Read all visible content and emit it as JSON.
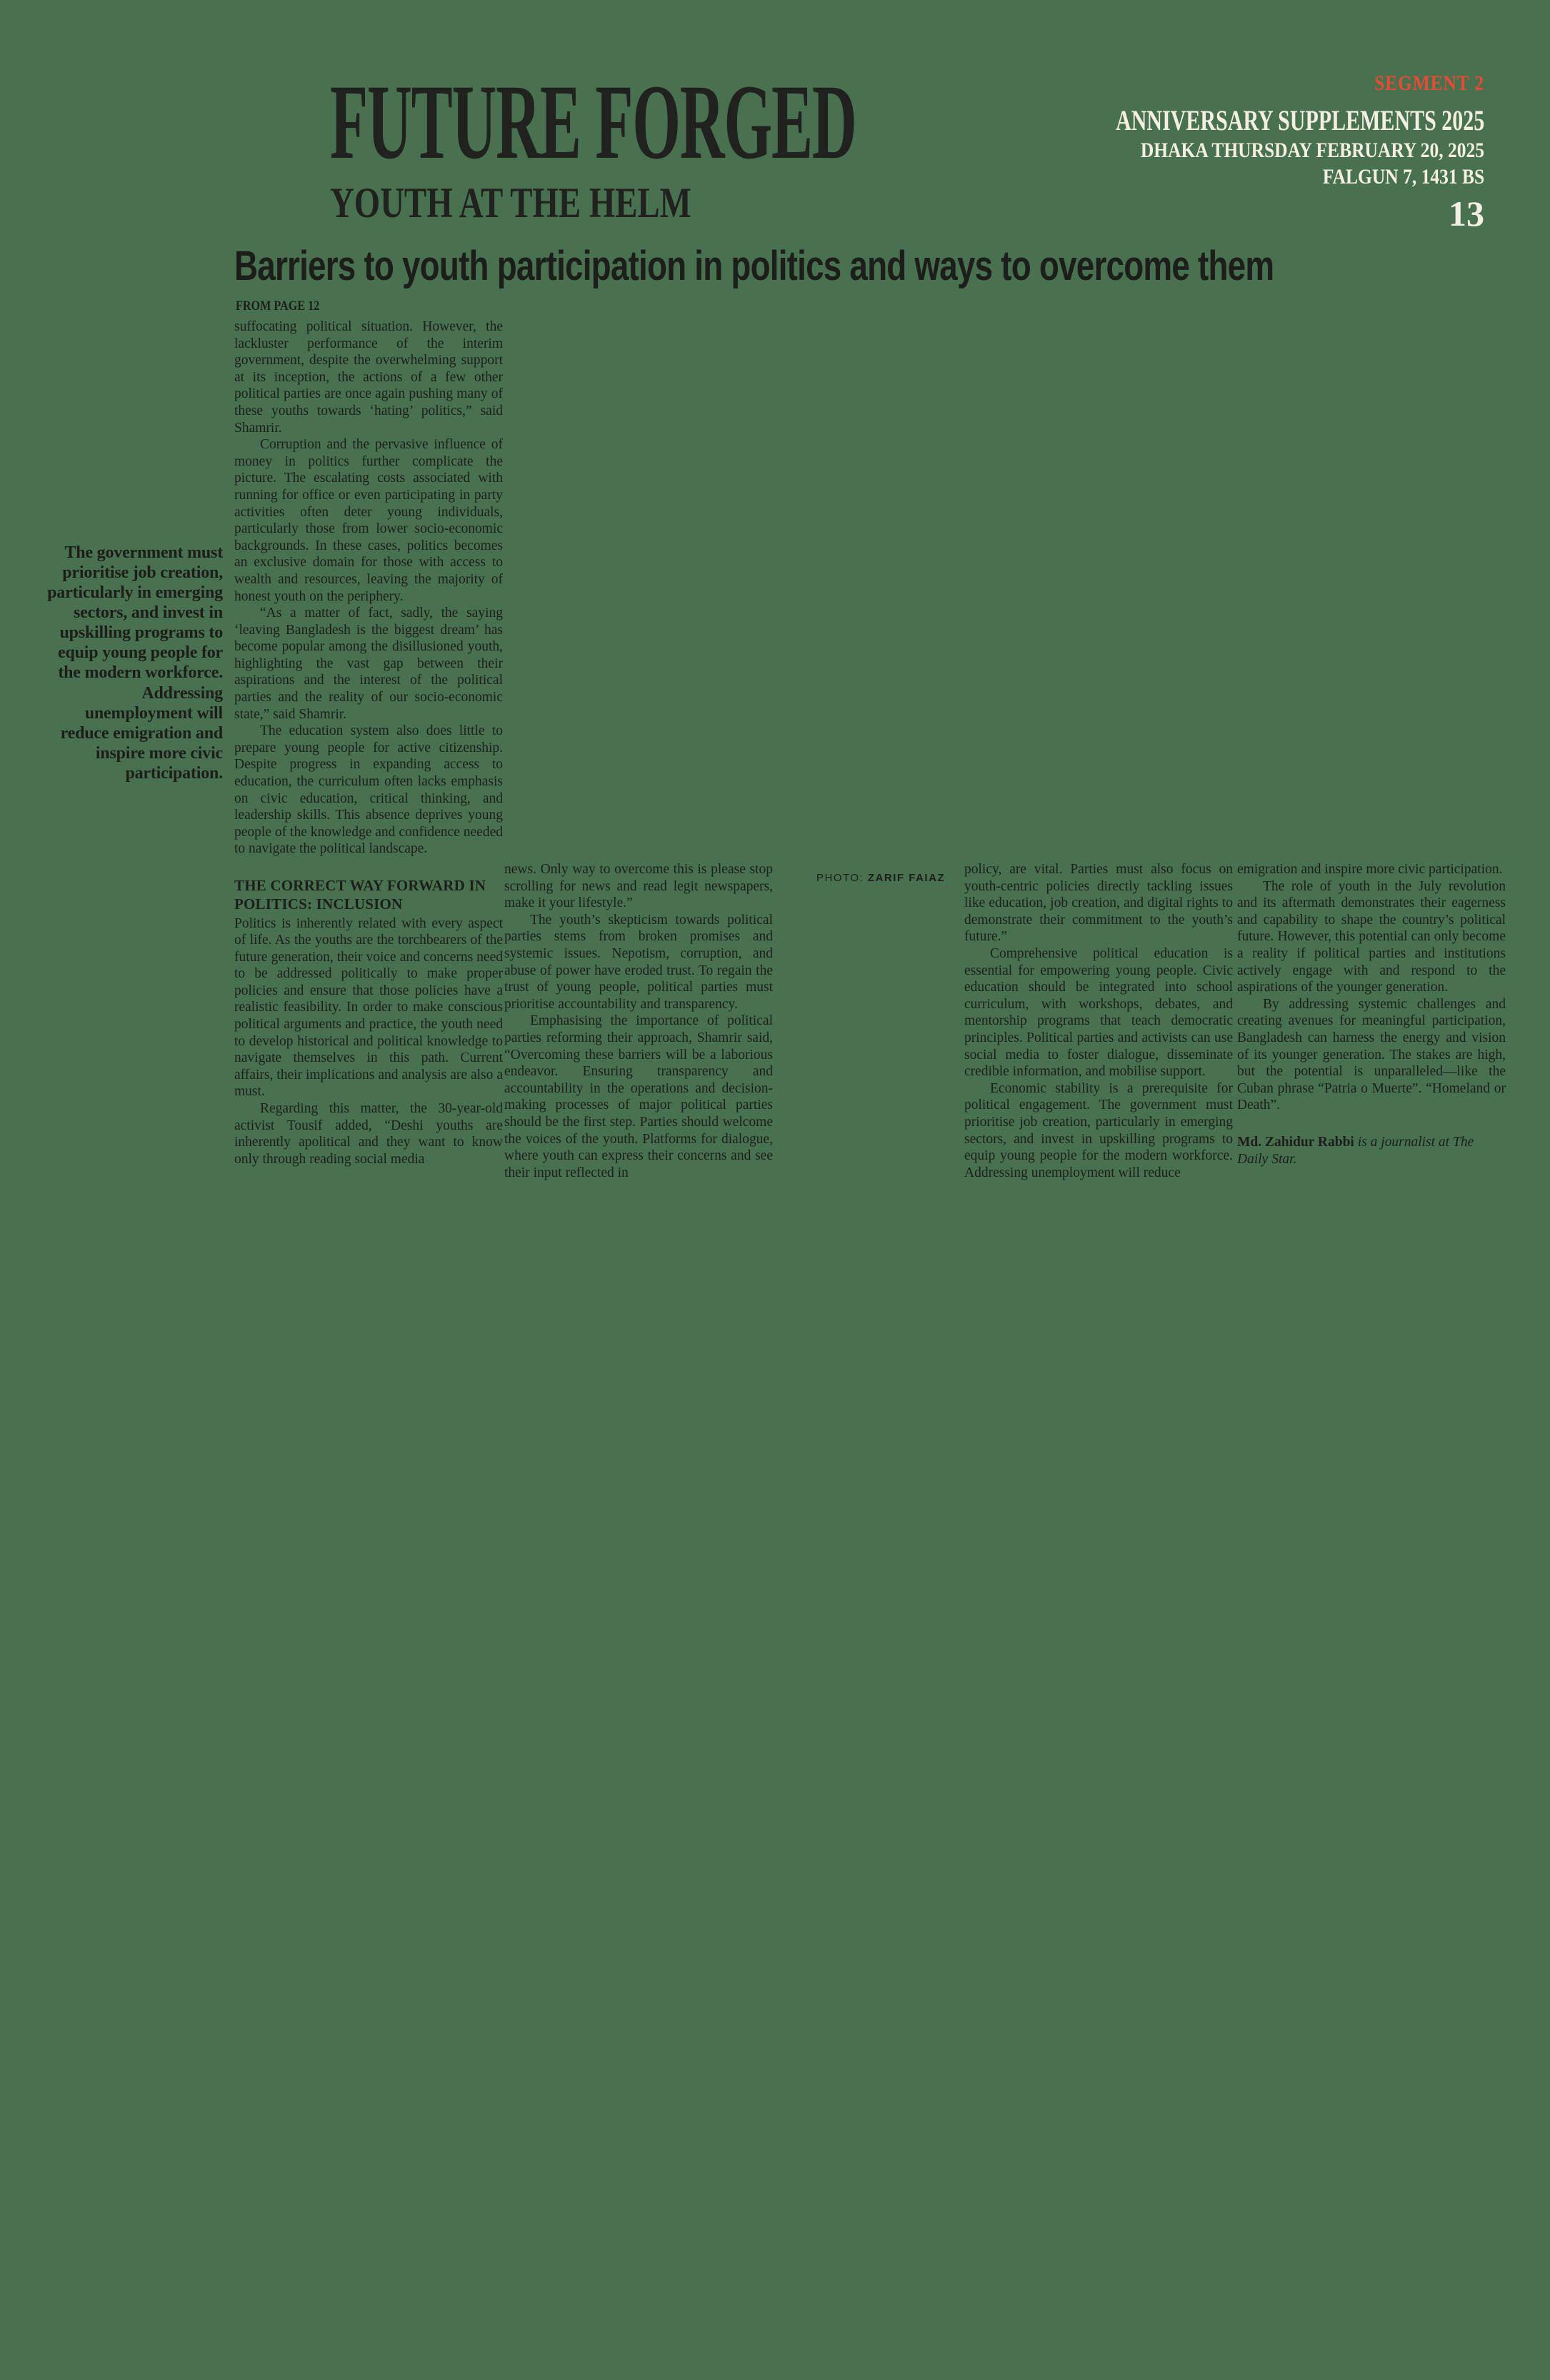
{
  "colors": {
    "background_green": "#48714F",
    "text_ink": "#1e1e1c",
    "accent_red": "#E84A36",
    "header_cream": "#F5EFE3"
  },
  "masthead": {
    "title": "FUTURE FORGED",
    "subtitle": "YOUTH AT THE HELM"
  },
  "header_meta": {
    "segment": "SEGMENT 2",
    "supplement": "ANNIVERSARY SUPPLEMENTS 2025",
    "dateline": "DHAKA THURSDAY FEBRUARY 20, 2025",
    "bangla_date": "FALGUN 7, 1431 BS",
    "page_number": "13"
  },
  "article": {
    "headline": "Barriers to youth participation in politics and ways to overcome them",
    "continuation": "FROM PAGE 12",
    "pull_quote": "The government must prioritise job creation, particularly in emerging sectors, and invest in upskilling programs to equip young people for the modern workforce. Addressing unemployment will reduce emigration and inspire more civic participation.",
    "photo_credit": {
      "label": "PHOTO:",
      "name": "ZARIF FAIAZ"
    },
    "columns": [
      {
        "blocks": [
          {
            "type": "cont",
            "text": "suffocating political situation. However, the lackluster performance of the interim government, despite the overwhelming support at its inception, the actions of a few other political parties are once again pushing many of these youths towards ‘hating’ politics,” said Shamrir."
          },
          {
            "type": "para",
            "text": "Corruption and the pervasive influence of money in politics further complicate the picture. The escalating costs associated with running for office or even participating in party activities often deter young individuals, particularly those from lower socio-economic backgrounds. In these cases, politics becomes an exclusive domain for those with access to wealth and resources, leaving the majority of honest youth on the periphery."
          },
          {
            "type": "para",
            "text": "“As a matter of fact, sadly, the saying ‘leaving Bangladesh is the biggest dream’ has become popular among the disillusioned youth, highlighting the vast gap between their aspirations and the interest of the political parties and the reality of our socio-economic state,” said Shamrir."
          },
          {
            "type": "para",
            "text": "The education system also does little to prepare young people for active citizenship. Despite progress in expanding access to education, the curriculum often lacks emphasis on civic education, critical thinking, and leadership skills. This absence deprives young people of the knowledge and confidence needed to navigate the political landscape."
          },
          {
            "type": "heading",
            "text": "THE CORRECT WAY FORWARD IN POLITICS: INCLUSION"
          },
          {
            "type": "cont",
            "text": "Politics is inherently related with every aspect of life. As the youths are the torchbearers of the future generation, their voice and concerns need to be addressed politically to make proper policies and ensure that those policies have a realistic feasibility. In order to make conscious political arguments and practice, the youth need to develop historical and political knowledge to navigate themselves in this path. Current affairs, their implications and analysis are also a must."
          },
          {
            "type": "para",
            "text": "Regarding this matter, the 30-year-old activist Tousif added, “Deshi youths are inherently apolitical and they want to know only through reading social media"
          }
        ]
      },
      {
        "blocks": [
          {
            "type": "cont",
            "text": "news. Only way to overcome this is please stop scrolling for news and read legit newspapers, make it your lifestyle.”"
          },
          {
            "type": "para",
            "text": "The youth’s skepticism towards political parties stems from broken promises and systemic issues. Nepotism, corruption, and abuse of power have eroded trust. To regain the trust of young people, political parties must prioritise accountability and transparency."
          },
          {
            "type": "para",
            "text": "Emphasising the importance of political parties reforming their approach, Shamrir said, “Overcoming these barriers will be a laborious endeavor. Ensuring transparency and accountability in the operations and decision-making processes of major political parties should be the first step. Parties should welcome the voices of the youth. Platforms for dialogue, where youth can express their concerns and see their input reflected in"
          }
        ]
      },
      {
        "blocks": [
          {
            "type": "cont",
            "text": "policy, are vital. Parties must also focus on youth-centric policies directly tackling issues like education, job creation, and digital rights to demonstrate their commitment to the youth’s future.”"
          },
          {
            "type": "para",
            "text": "Comprehensive political education is essential for empowering young people. Civic education should be integrated into school curriculum, with workshops, debates, and mentorship programs that teach democratic principles. Political parties and activists can use social media to foster dialogue, disseminate credible information, and mobilise support."
          },
          {
            "type": "para",
            "text": "Economic stability is a prerequisite for political engagement. The government must prioritise job creation, particularly in emerging sectors, and invest in upskilling programs to equip young people for the modern workforce. Addressing unemployment will reduce"
          }
        ]
      },
      {
        "blocks": [
          {
            "type": "cont",
            "text": "emigration and inspire more civic participation."
          },
          {
            "type": "para",
            "text": "The role of youth in the July revolution and its aftermath demonstrates their eagerness and capability to shape the country’s political future. However, this potential can only become a reality if political parties and institutions actively engage with and respond to the aspirations of the younger generation."
          },
          {
            "type": "para",
            "text": "By addressing systemic challenges and creating avenues for meaningful participation, Bangladesh can harness the energy and vision of its younger generation. The stakes are high, but the potential is unparalleled—like the Cuban phrase “Patria o Muerte”. “Homeland or Death”."
          },
          {
            "type": "byline",
            "name": "Md. Zahidur Rabbi",
            "text": " is a journalist at The Daily Star."
          }
        ]
      }
    ]
  }
}
